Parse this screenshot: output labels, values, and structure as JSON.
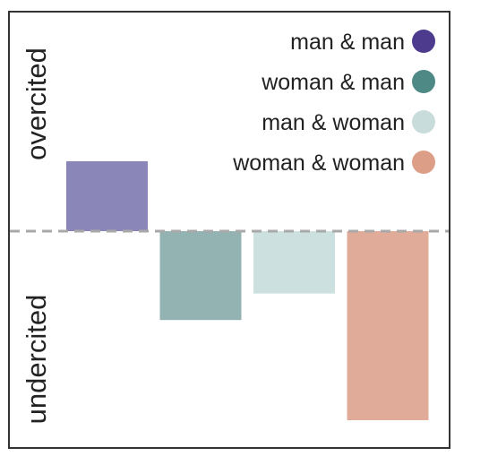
{
  "chart_data": {
    "type": "bar",
    "categories": [
      "man & man",
      "woman & man",
      "man & woman",
      "woman & woman"
    ],
    "values": [
      0.37,
      -0.47,
      -0.33,
      -1.0
    ],
    "colors": [
      "#8b86b8",
      "#92b3b2",
      "#cbe0df",
      "#e0ab98"
    ],
    "legend": {
      "placement": "top-right",
      "entries": [
        {
          "label": "man & man",
          "color": "#4d3b8e"
        },
        {
          "label": "woman & man",
          "color": "#4f8986"
        },
        {
          "label": "man & woman",
          "color": "#c7dcdb"
        },
        {
          "label": "woman & woman",
          "color": "#dc9e87"
        }
      ]
    },
    "ylabel_top": "overcited",
    "ylabel_bottom": "undercited",
    "baseline": 0,
    "baseline_style": "dashed",
    "ylim": [
      -1.1,
      1.0
    ],
    "grid": false
  }
}
